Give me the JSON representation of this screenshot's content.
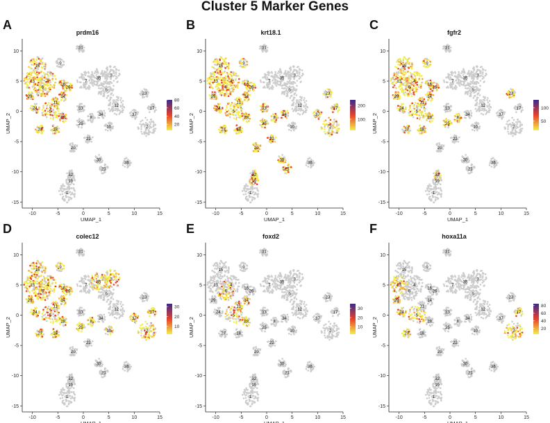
{
  "figure_title": "Cluster 5 Marker Genes",
  "chart_data": [
    {
      "type": "scatter",
      "panel": "A",
      "title": "prdm16",
      "xlabel": "UMAP_1",
      "ylabel": "UMAP_2",
      "xlim": [
        -12,
        15
      ],
      "ylim": [
        -16,
        12
      ],
      "xticks": [
        -10,
        -5,
        0,
        5,
        10,
        15
      ],
      "yticks": [
        -15,
        -10,
        -5,
        0,
        5,
        10
      ],
      "legend_ticks": [
        20,
        40,
        60,
        80
      ],
      "legend_range": [
        5,
        80
      ],
      "expressed_clusters": [
        "13",
        "15",
        "4",
        "29",
        "6",
        "14",
        "11",
        "24",
        "5",
        "27",
        "18",
        "28",
        "16",
        "26"
      ],
      "colors": {
        "low": "#f2f04a",
        "mid": "#e8402a",
        "high": "#3a2a8c",
        "base": "#cccccc"
      }
    },
    {
      "type": "scatter",
      "panel": "B",
      "title": "krt18.1",
      "xlabel": "UMAP_1",
      "ylabel": "UMAP_2",
      "xlim": [
        -12,
        15
      ],
      "ylim": [
        -16,
        12
      ],
      "xticks": [
        -10,
        -5,
        0,
        5,
        10,
        15
      ],
      "yticks": [
        -15,
        -10,
        -5,
        0,
        5,
        10
      ],
      "legend_ticks": [
        100,
        200
      ],
      "legend_range": [
        20,
        240
      ],
      "expressed_clusters": [
        "13",
        "15",
        "4",
        "9",
        "29",
        "6",
        "14",
        "11",
        "24",
        "5",
        "27",
        "18",
        "28",
        "16",
        "26",
        "8",
        "25",
        "23",
        "17",
        "2",
        "37",
        "32",
        "19",
        "30",
        "21",
        "22",
        "20",
        "33",
        "34"
      ],
      "colors": {
        "low": "#f2f04a",
        "mid": "#e8402a",
        "high": "#3a2a8c",
        "base": "#cccccc"
      }
    },
    {
      "type": "scatter",
      "panel": "C",
      "title": "fgfr2",
      "xlabel": "UMAP_1",
      "ylabel": "UMAP_2",
      "xlim": [
        -12,
        15
      ],
      "ylim": [
        -16,
        12
      ],
      "xticks": [
        -10,
        -5,
        0,
        5,
        10,
        15
      ],
      "yticks": [
        -15,
        -10,
        -5,
        0,
        5,
        10
      ],
      "legend_ticks": [
        50,
        100
      ],
      "legend_range": [
        15,
        130
      ],
      "expressed_clusters": [
        "13",
        "15",
        "4",
        "9",
        "29",
        "6",
        "14",
        "11",
        "24",
        "5",
        "27",
        "18",
        "28",
        "16",
        "26",
        "8",
        "25",
        "23",
        "32"
      ],
      "colors": {
        "low": "#f2f04a",
        "mid": "#e8402a",
        "high": "#3a2a8c",
        "base": "#cccccc"
      }
    },
    {
      "type": "scatter",
      "panel": "D",
      "title": "colec12",
      "xlabel": "UMAP_1",
      "ylabel": "UMAP_2",
      "xlim": [
        -12,
        15
      ],
      "ylim": [
        -16,
        12
      ],
      "xticks": [
        -10,
        -5,
        0,
        5,
        10,
        15
      ],
      "yticks": [
        -15,
        -10,
        -5,
        0,
        5,
        10
      ],
      "legend_ticks": [
        10,
        20,
        30
      ],
      "legend_range": [
        2,
        33
      ],
      "expressed_clusters": [
        "13",
        "15",
        "4",
        "9",
        "29",
        "6",
        "14",
        "11",
        "24",
        "5",
        "27",
        "18",
        "28",
        "16",
        "26",
        "8",
        "25",
        "17",
        "2",
        "37",
        "10",
        "3",
        "35"
      ],
      "colors": {
        "low": "#f2f04a",
        "mid": "#e8402a",
        "high": "#3a2a8c",
        "base": "#cccccc"
      }
    },
    {
      "type": "scatter",
      "panel": "E",
      "title": "foxd2",
      "xlabel": "UMAP_1",
      "ylabel": "UMAP_2",
      "xlim": [
        -12,
        15
      ],
      "ylim": [
        -16,
        12
      ],
      "xticks": [
        -10,
        -5,
        0,
        5,
        10,
        15
      ],
      "yticks": [
        -15,
        -10,
        -5,
        0,
        5,
        10
      ],
      "legend_ticks": [
        10,
        20,
        30
      ],
      "legend_range": [
        2,
        35
      ],
      "expressed_clusters": [
        "6",
        "14",
        "11",
        "5",
        "28"
      ],
      "colors": {
        "low": "#f2f04a",
        "mid": "#e8402a",
        "high": "#3a2a8c",
        "base": "#cccccc"
      }
    },
    {
      "type": "scatter",
      "panel": "F",
      "title": "hoxa11a",
      "xlabel": "UMAP_1",
      "ylabel": "UMAP_2",
      "xlim": [
        -12,
        15
      ],
      "ylim": [
        -16,
        12
      ],
      "xticks": [
        -10,
        -5,
        0,
        5,
        10,
        15
      ],
      "yticks": [
        -15,
        -10,
        -5,
        0,
        5,
        10
      ],
      "legend_ticks": [
        20,
        40,
        60,
        80
      ],
      "legend_range": [
        5,
        85
      ],
      "expressed_clusters": [
        "24",
        "29",
        "13",
        "5",
        "2",
        "17",
        "27"
      ],
      "colors": {
        "low": "#f2f04a",
        "mid": "#e8402a",
        "high": "#3a2a8c",
        "base": "#cccccc"
      }
    }
  ],
  "clusters": [
    {
      "id": "0",
      "x": 4.5,
      "y": 3.5
    },
    {
      "id": "1",
      "x": -3.2,
      "y": -13.5
    },
    {
      "id": "2",
      "x": 12.5,
      "y": -2.5
    },
    {
      "id": "3",
      "x": 5.5,
      "y": 6.0
    },
    {
      "id": "4",
      "x": -7.0,
      "y": 5.0
    },
    {
      "id": "5",
      "x": -6.5,
      "y": 0.0
    },
    {
      "id": "6",
      "x": -8.0,
      "y": 4.0
    },
    {
      "id": "7",
      "x": 0.5,
      "y": 5.0
    },
    {
      "id": "8",
      "x": 1.5,
      "y": -1.0
    },
    {
      "id": "9",
      "x": -4.5,
      "y": 8.0
    },
    {
      "id": "10",
      "x": 5.0,
      "y": -2.5
    },
    {
      "id": "11",
      "x": -5.5,
      "y": 1.5
    },
    {
      "id": "12",
      "x": 6.5,
      "y": 1.0
    },
    {
      "id": "13",
      "x": -10.0,
      "y": 5.0
    },
    {
      "id": "14",
      "x": -4.0,
      "y": 2.5
    },
    {
      "id": "15",
      "x": -9.0,
      "y": 7.5
    },
    {
      "id": "16",
      "x": -4.0,
      "y": 4.5
    },
    {
      "id": "17",
      "x": 13.5,
      "y": 0.5
    },
    {
      "id": "18",
      "x": -5.5,
      "y": -3.0
    },
    {
      "id": "19",
      "x": -2.5,
      "y": -11.5
    },
    {
      "id": "20",
      "x": -2.0,
      "y": -6.0
    },
    {
      "id": "21",
      "x": 4.0,
      "y": -9.5
    },
    {
      "id": "22",
      "x": 1.0,
      "y": -4.5
    },
    {
      "id": "23",
      "x": 12.0,
      "y": 3.0
    },
    {
      "id": "24",
      "x": -9.5,
      "y": 0.5
    },
    {
      "id": "25",
      "x": -0.5,
      "y": -2.0
    },
    {
      "id": "26",
      "x": -3.0,
      "y": 4.0
    },
    {
      "id": "27",
      "x": -8.5,
      "y": -3.0
    },
    {
      "id": "28",
      "x": -4.0,
      "y": -1.0
    },
    {
      "id": "29",
      "x": -10.5,
      "y": 2.5
    },
    {
      "id": "30",
      "x": 3.0,
      "y": -8.0
    },
    {
      "id": "31",
      "x": -0.5,
      "y": 10.5
    },
    {
      "id": "32",
      "x": -2.5,
      "y": -10.5
    },
    {
      "id": "33",
      "x": -0.5,
      "y": 0.5
    },
    {
      "id": "34",
      "x": 3.5,
      "y": -0.5
    },
    {
      "id": "35",
      "x": 3.0,
      "y": 5.5
    },
    {
      "id": "36",
      "x": 8.5,
      "y": -8.5
    },
    {
      "id": "37",
      "x": 10.0,
      "y": -0.5
    }
  ]
}
